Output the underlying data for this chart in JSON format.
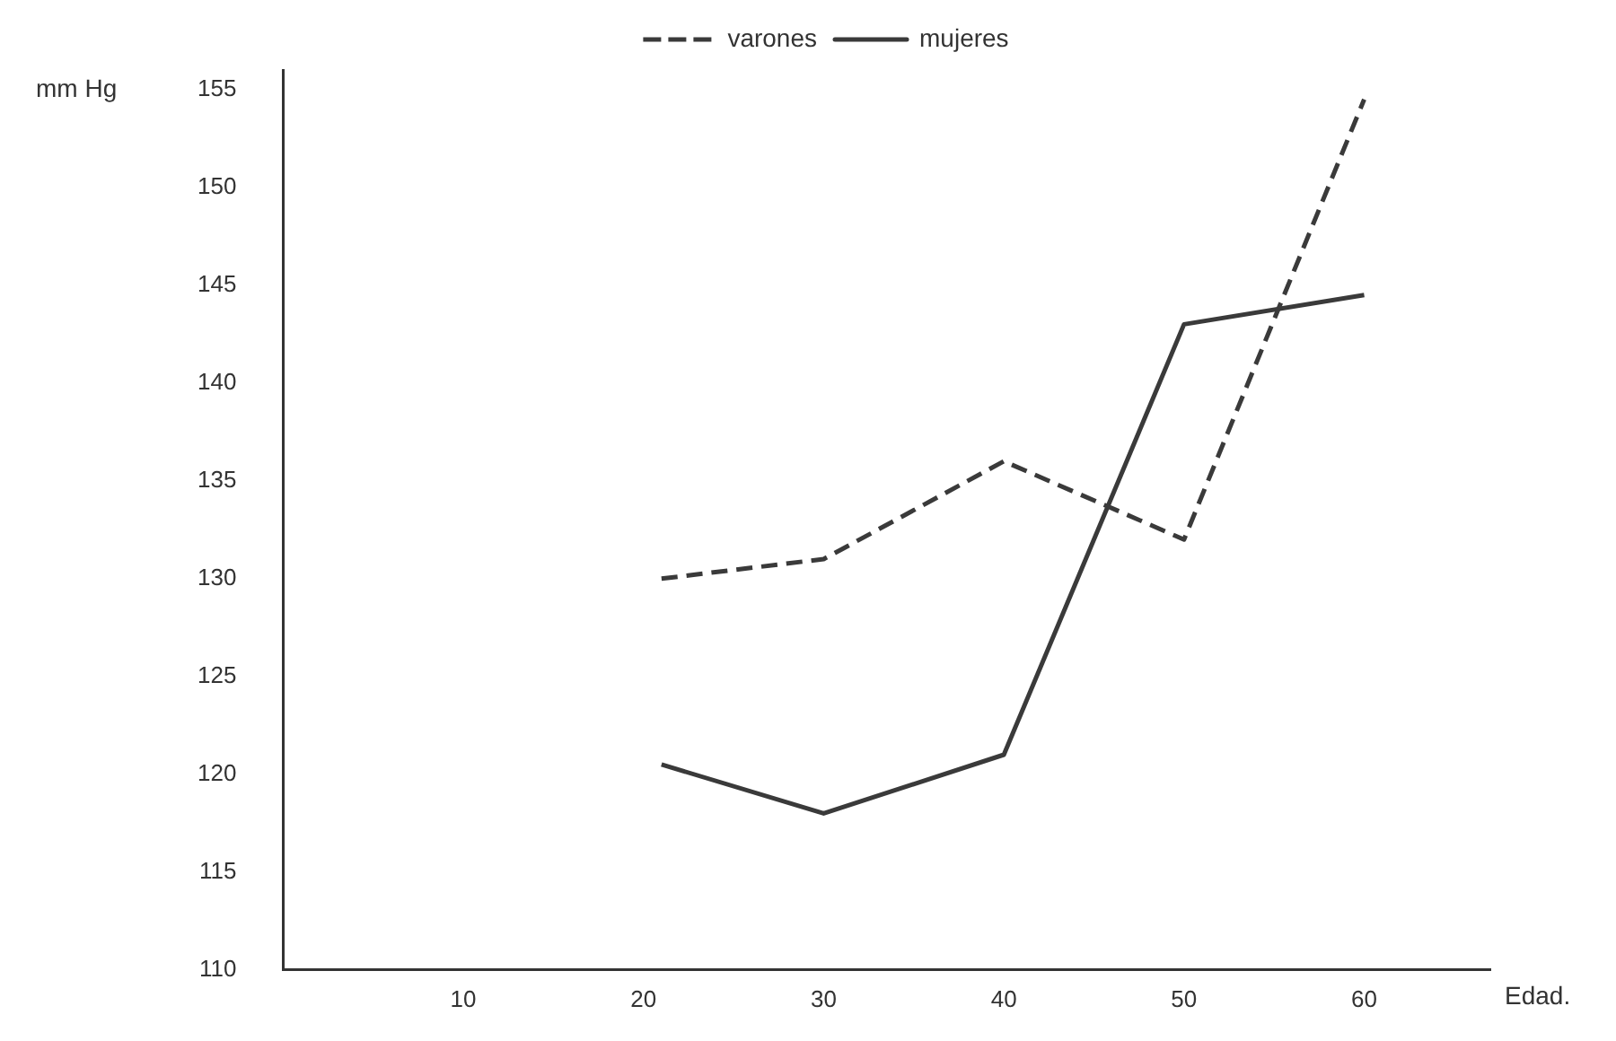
{
  "chart_data": {
    "type": "line",
    "xlabel": "Edad.",
    "ylabel": "mm Hg",
    "xlim": [
      0,
      67
    ],
    "xticks": [
      10,
      20,
      30,
      40,
      50,
      60
    ],
    "ylim": [
      110,
      156
    ],
    "yticks": [
      110,
      115,
      120,
      125,
      130,
      135,
      140,
      145,
      150,
      155
    ],
    "grid": false,
    "legend": "top",
    "marker": "none",
    "series": [
      {
        "name": "varones",
        "color": "#3a3a3a",
        "line_style": "dashed",
        "x": [
          21,
          30,
          40,
          50,
          60
        ],
        "values": [
          130,
          131,
          136,
          132,
          154.5
        ]
      },
      {
        "name": "mujeres",
        "color": "#3a3a3a",
        "line_style": "solid",
        "x": [
          21,
          30,
          40,
          50,
          60
        ],
        "values": [
          120.5,
          118,
          121,
          143,
          144.5
        ]
      }
    ]
  }
}
